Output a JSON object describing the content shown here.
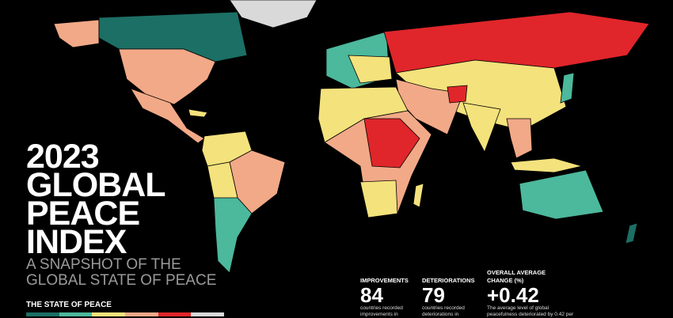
{
  "title": {
    "lines": [
      "2023",
      "GLOBAL",
      "PEACE",
      "INDEX"
    ]
  },
  "subtitle": {
    "lines": [
      "A SNAPSHOT OF THE",
      "GLOBAL STATE OF PEACE"
    ]
  },
  "legend": {
    "title": "THE STATE OF PEACE"
  },
  "stats": [
    {
      "label": [
        "IMPROVEMENTS"
      ],
      "value": "84",
      "text": [
        "countries recorded",
        "improvements in"
      ]
    },
    {
      "label": [
        "DETERIORATIONS"
      ],
      "value": "79",
      "text": [
        "countries recorded",
        "deteriorations in"
      ]
    },
    {
      "label": [
        "OVERALL AVERAGE",
        "CHANGE (%)"
      ],
      "value": "+0.42",
      "text": [
        "The average level of global",
        "peacefulness deteriorated by 0.42 per"
      ]
    }
  ]
}
